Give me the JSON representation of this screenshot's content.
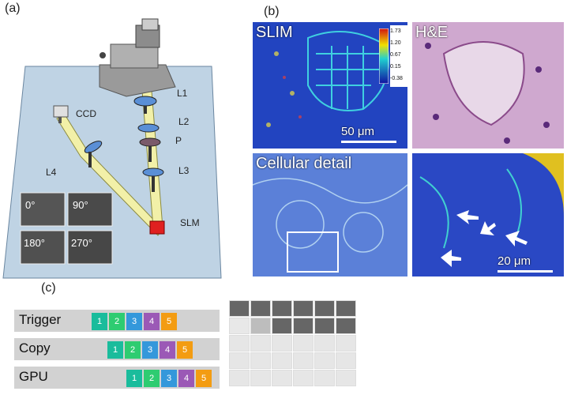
{
  "panel_labels": {
    "a": "(a)",
    "b": "(b)",
    "c": "(c)"
  },
  "setup": {
    "components": {
      "l1": "L1",
      "l2": "L2",
      "p": "P",
      "l3": "L3",
      "ccd": "CCD",
      "l4": "L4",
      "slm": "SLM"
    },
    "phase_tiles": [
      "0°",
      "90°",
      "180°",
      "270°"
    ]
  },
  "microscopy": {
    "slim_label": "SLIM",
    "he_label": "H&E",
    "cellular_label": "Cellular detail",
    "scale_top": "50 μm",
    "scale_bottom": "20 μm",
    "colorbar_ticks": [
      "1.73",
      "1.20",
      "0.67",
      "0.15",
      "-0.38"
    ]
  },
  "pipeline": {
    "rows": [
      {
        "label": "Trigger",
        "steps": [
          "1",
          "2",
          "3",
          "4",
          "5"
        ]
      },
      {
        "label": "Copy",
        "steps": [
          "1",
          "2",
          "3",
          "4",
          "5"
        ]
      },
      {
        "label": "GPU",
        "steps": [
          "1",
          "2",
          "3",
          "4",
          "5"
        ]
      }
    ],
    "step_colors": [
      "#1abc9c",
      "#2ecc71",
      "#3498db",
      "#9b59b6",
      "#f39c12"
    ]
  }
}
